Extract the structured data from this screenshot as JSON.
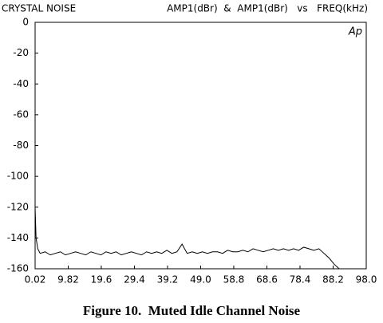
{
  "chart_data": {
    "type": "line",
    "title": "CRYSTAL NOISE",
    "subtitle": "AMP1(dBr)  &  AMP1(dBr)   vs   FREQ(kHz)",
    "annotation": "Ap",
    "caption": "Figure 10.  Muted Idle Channel Noise",
    "x": [
      0.02,
      0.3,
      0.8,
      1.5,
      3,
      4.5,
      6,
      7.5,
      9,
      10.5,
      12,
      13.5,
      15,
      16.5,
      18,
      19.5,
      21,
      22.5,
      24,
      25.5,
      27,
      28.5,
      30,
      31.5,
      33,
      34.5,
      36,
      37.5,
      39,
      40.5,
      42,
      43.5,
      45,
      46.5,
      48,
      49.5,
      51,
      52.5,
      54,
      55.5,
      57,
      58.5,
      60,
      61.5,
      63,
      64.5,
      66,
      67.5,
      69,
      70.5,
      72,
      73.5,
      75,
      76.5,
      78,
      79.5,
      81,
      82.5,
      84,
      85.5,
      87,
      88.5,
      90
    ],
    "series": [
      {
        "color": "#000000",
        "values": [
          -120,
          -140,
          -147,
          -150,
          -149,
          -151,
          -150,
          -149,
          -151,
          -150,
          -149,
          -150,
          -151,
          -149,
          -150,
          -151,
          -149,
          -150,
          -149,
          -151,
          -150,
          -149,
          -150,
          -151,
          -149,
          -150,
          -149,
          -150,
          -148,
          -150,
          -149,
          -144,
          -150,
          -149,
          -150,
          -149,
          -150,
          -149,
          -149,
          -150,
          -148,
          -149,
          -149,
          -148,
          -149,
          -147,
          -148,
          -149,
          -148,
          -147,
          -148,
          -147,
          -148,
          -147,
          -148,
          -146,
          -147,
          -148,
          -147,
          -150,
          -153,
          -157,
          -160
        ]
      }
    ],
    "xlim": [
      0.02,
      98
    ],
    "xticks": [
      0.02,
      9.82,
      19.6,
      29.4,
      39.2,
      {
        "value": 49,
        "label": "49.0"
      },
      58.8,
      68.6,
      78.4,
      88.2,
      {
        "value": 98,
        "label": "98.0"
      }
    ],
    "ylim": [
      -160,
      0
    ],
    "yticks": [
      0,
      -20,
      -40,
      -60,
      -80,
      -100,
      -120,
      -140,
      -160
    ],
    "grid": false
  }
}
